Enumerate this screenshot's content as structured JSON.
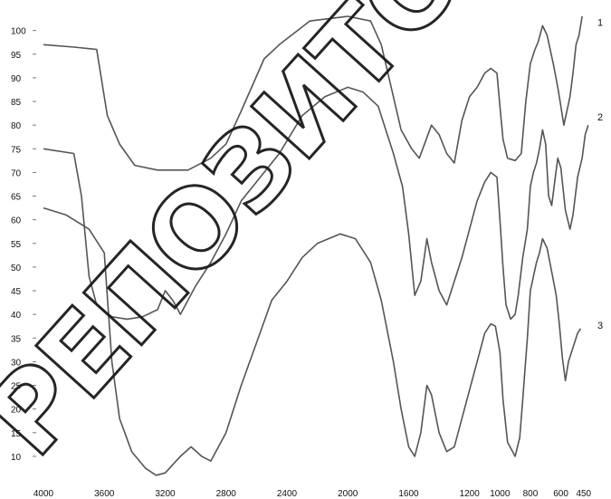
{
  "chart_data": {
    "type": "line",
    "title": "",
    "xlabel": "",
    "ylabel": "",
    "xlim": [
      4000,
      300
    ],
    "ylim": [
      5,
      103
    ],
    "x_ticks": [
      "4000",
      "3600",
      "3200",
      "2800",
      "2400",
      "2000",
      "1600",
      "1200",
      "1000",
      "800",
      "600",
      "450"
    ],
    "y_ticks": [
      "100",
      "95",
      "90",
      "85",
      "80",
      "75",
      "70",
      "65",
      "60",
      "55",
      "50",
      "45",
      "40",
      "35",
      "30",
      "25",
      "20",
      "15",
      "10"
    ],
    "line_color": "#555555",
    "watermark_text": "РЕПОЗИТОРИЙ",
    "series": [
      {
        "name": "1",
        "points": [
          [
            4000,
            97
          ],
          [
            3800,
            96.5
          ],
          [
            3650,
            96
          ],
          [
            3580,
            82
          ],
          [
            3500,
            76
          ],
          [
            3400,
            71.5
          ],
          [
            3250,
            70.5
          ],
          [
            3050,
            70.5
          ],
          [
            2900,
            73
          ],
          [
            2800,
            76
          ],
          [
            2700,
            83
          ],
          [
            2550,
            94
          ],
          [
            2450,
            97
          ],
          [
            2250,
            102
          ],
          [
            2000,
            103
          ],
          [
            1850,
            102
          ],
          [
            1780,
            97
          ],
          [
            1700,
            86
          ],
          [
            1650,
            79
          ],
          [
            1580,
            75
          ],
          [
            1530,
            73
          ],
          [
            1450,
            80
          ],
          [
            1400,
            78
          ],
          [
            1350,
            74
          ],
          [
            1300,
            72
          ],
          [
            1250,
            81
          ],
          [
            1200,
            86
          ],
          [
            1150,
            88
          ],
          [
            1100,
            91
          ],
          [
            1060,
            92
          ],
          [
            1020,
            91
          ],
          [
            1000,
            84
          ],
          [
            980,
            77
          ],
          [
            950,
            73
          ],
          [
            900,
            72.5
          ],
          [
            860,
            74
          ],
          [
            830,
            85
          ],
          [
            800,
            93
          ],
          [
            770,
            96
          ],
          [
            750,
            97.5
          ],
          [
            720,
            101
          ],
          [
            690,
            99
          ],
          [
            650,
            93
          ],
          [
            620,
            88
          ],
          [
            600,
            84
          ],
          [
            580,
            80
          ],
          [
            560,
            83
          ],
          [
            540,
            86
          ],
          [
            520,
            91
          ],
          [
            500,
            97
          ],
          [
            480,
            99
          ],
          [
            460,
            103
          ]
        ]
      },
      {
        "name": "2",
        "points": [
          [
            4000,
            75
          ],
          [
            3800,
            74
          ],
          [
            3750,
            65
          ],
          [
            3700,
            48
          ],
          [
            3650,
            42
          ],
          [
            3550,
            39.5
          ],
          [
            3450,
            39
          ],
          [
            3350,
            39.5
          ],
          [
            3250,
            41
          ],
          [
            3200,
            45
          ],
          [
            3150,
            43
          ],
          [
            3100,
            40
          ],
          [
            3000,
            46
          ],
          [
            2900,
            51
          ],
          [
            2800,
            57
          ],
          [
            2700,
            64
          ],
          [
            2550,
            70
          ],
          [
            2450,
            74
          ],
          [
            2300,
            82
          ],
          [
            2150,
            86
          ],
          [
            2000,
            88
          ],
          [
            1900,
            87
          ],
          [
            1800,
            84
          ],
          [
            1700,
            74
          ],
          [
            1640,
            67
          ],
          [
            1600,
            57
          ],
          [
            1560,
            44
          ],
          [
            1520,
            47
          ],
          [
            1480,
            56
          ],
          [
            1450,
            51
          ],
          [
            1400,
            45
          ],
          [
            1350,
            42
          ],
          [
            1300,
            47
          ],
          [
            1250,
            52
          ],
          [
            1200,
            58
          ],
          [
            1150,
            64
          ],
          [
            1100,
            68
          ],
          [
            1060,
            70
          ],
          [
            1020,
            69
          ],
          [
            1000,
            60
          ],
          [
            980,
            50
          ],
          [
            960,
            42
          ],
          [
            930,
            39
          ],
          [
            900,
            40
          ],
          [
            880,
            44
          ],
          [
            850,
            52
          ],
          [
            820,
            58
          ],
          [
            800,
            67
          ],
          [
            780,
            70
          ],
          [
            760,
            72
          ],
          [
            740,
            75
          ],
          [
            720,
            79
          ],
          [
            700,
            76
          ],
          [
            680,
            65
          ],
          [
            660,
            63
          ],
          [
            640,
            68
          ],
          [
            620,
            73
          ],
          [
            600,
            71
          ],
          [
            570,
            62
          ],
          [
            540,
            58
          ],
          [
            520,
            61
          ],
          [
            490,
            69
          ],
          [
            460,
            73
          ],
          [
            440,
            78
          ],
          [
            420,
            80
          ]
        ]
      },
      {
        "name": "3",
        "points": [
          [
            4000,
            62.5
          ],
          [
            3850,
            61
          ],
          [
            3700,
            58
          ],
          [
            3600,
            53
          ],
          [
            3550,
            30
          ],
          [
            3500,
            18
          ],
          [
            3420,
            11
          ],
          [
            3330,
            7.5
          ],
          [
            3260,
            6
          ],
          [
            3200,
            6.5
          ],
          [
            3100,
            10
          ],
          [
            3030,
            12
          ],
          [
            2960,
            10
          ],
          [
            2900,
            9
          ],
          [
            2800,
            15
          ],
          [
            2700,
            25
          ],
          [
            2600,
            34
          ],
          [
            2500,
            43
          ],
          [
            2400,
            47
          ],
          [
            2300,
            52
          ],
          [
            2200,
            55
          ],
          [
            2050,
            57
          ],
          [
            1950,
            56
          ],
          [
            1850,
            51
          ],
          [
            1780,
            43
          ],
          [
            1700,
            30
          ],
          [
            1650,
            20
          ],
          [
            1600,
            12
          ],
          [
            1560,
            10
          ],
          [
            1520,
            15
          ],
          [
            1480,
            25
          ],
          [
            1450,
            23
          ],
          [
            1400,
            15
          ],
          [
            1350,
            11
          ],
          [
            1300,
            12
          ],
          [
            1250,
            18
          ],
          [
            1200,
            24
          ],
          [
            1150,
            30
          ],
          [
            1100,
            36
          ],
          [
            1060,
            38
          ],
          [
            1030,
            37.5
          ],
          [
            1000,
            32
          ],
          [
            980,
            22
          ],
          [
            950,
            13
          ],
          [
            900,
            10
          ],
          [
            870,
            14
          ],
          [
            850,
            22
          ],
          [
            820,
            35
          ],
          [
            800,
            45
          ],
          [
            780,
            48
          ],
          [
            760,
            51
          ],
          [
            740,
            53
          ],
          [
            720,
            56
          ],
          [
            690,
            54
          ],
          [
            660,
            49
          ],
          [
            630,
            44
          ],
          [
            610,
            38
          ],
          [
            590,
            31
          ],
          [
            570,
            26
          ],
          [
            550,
            30
          ],
          [
            520,
            33
          ],
          [
            490,
            36
          ],
          [
            470,
            37
          ]
        ]
      }
    ],
    "series_labels": [
      {
        "text": "1",
        "x": 330,
        "y": 101
      },
      {
        "text": "2",
        "x": 320,
        "y": 81
      },
      {
        "text": "3",
        "x": 330,
        "y": 37
      }
    ]
  }
}
